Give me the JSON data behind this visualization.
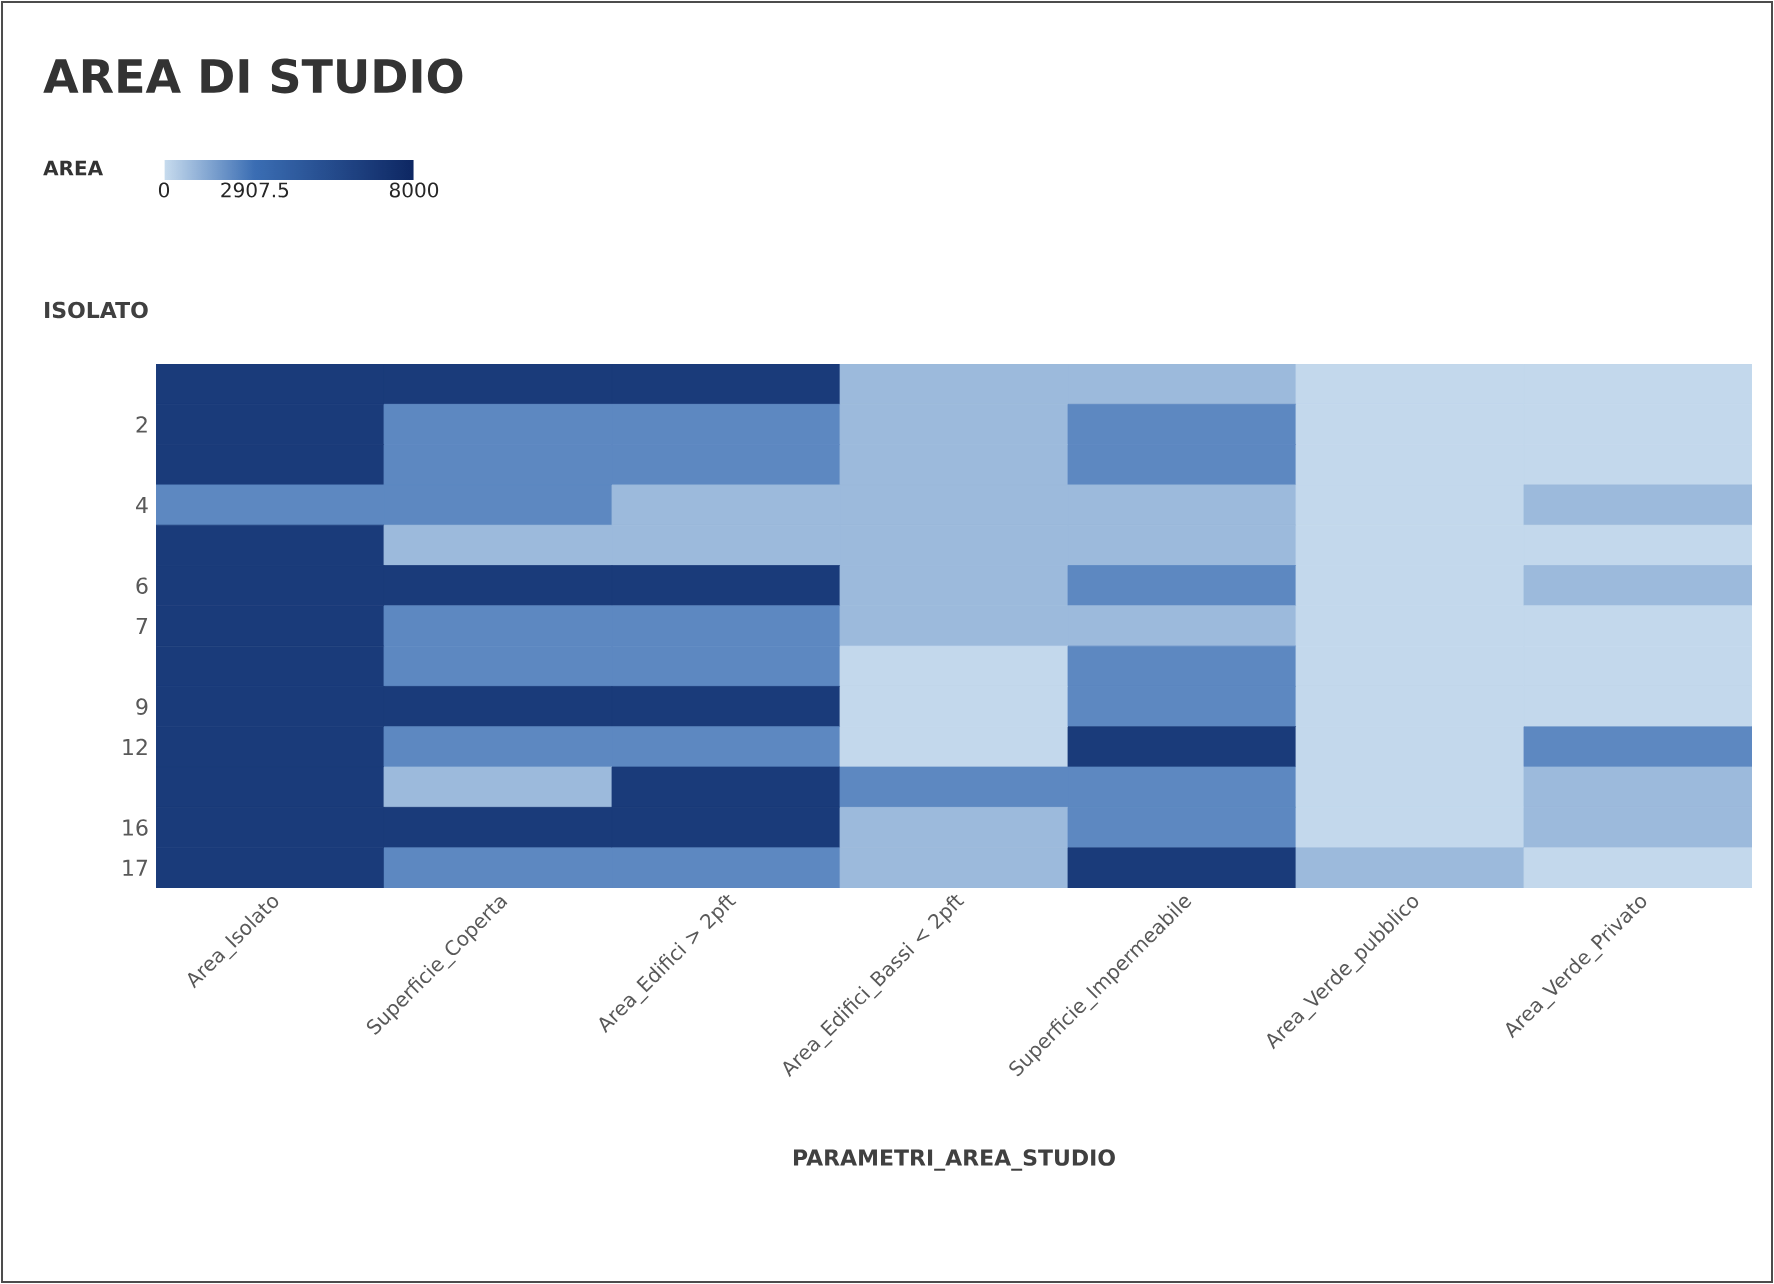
{
  "chart_data": {
    "type": "heatmap",
    "title": "AREA DI STUDIO",
    "clabel": "AREA",
    "ylabel": "ISOLATO",
    "xlabel": "PARAMETRI_AREA_STUDIO",
    "categories": [
      "Area_Isolato",
      "Superficie_Coperta",
      "Area_Edifici > 2pft",
      "Area_Edifici_Bassi < 2pft",
      "Superficie_Impermeabile",
      "Area_Verde_pubblico",
      "Area_Verde_Privato"
    ],
    "y_categories": [
      null,
      "2",
      null,
      "4",
      null,
      "6",
      "7",
      null,
      "9",
      "12",
      null,
      "16",
      "17"
    ],
    "cells": [
      [
        6500,
        6500,
        6500,
        900,
        900,
        100,
        100
      ],
      [
        6500,
        2200,
        2200,
        900,
        2200,
        100,
        100
      ],
      [
        6500,
        2200,
        2200,
        900,
        2200,
        100,
        100
      ],
      [
        2200,
        2200,
        900,
        900,
        900,
        100,
        900
      ],
      [
        6500,
        900,
        900,
        900,
        900,
        100,
        100
      ],
      [
        6500,
        6500,
        6500,
        900,
        2200,
        100,
        900
      ],
      [
        6500,
        2200,
        2200,
        900,
        900,
        100,
        100
      ],
      [
        6500,
        2200,
        2200,
        100,
        2200,
        100,
        100
      ],
      [
        6500,
        6500,
        6500,
        100,
        2200,
        100,
        100
      ],
      [
        6500,
        2200,
        2200,
        100,
        6500,
        100,
        2200
      ],
      [
        6500,
        900,
        6500,
        2200,
        2200,
        100,
        900
      ],
      [
        6500,
        6500,
        6500,
        900,
        2200,
        100,
        900
      ],
      [
        6500,
        2200,
        2200,
        900,
        6500,
        900,
        100
      ]
    ],
    "clim": [
      0,
      8000
    ],
    "cticks": [
      0,
      2907.5,
      8000
    ]
  }
}
